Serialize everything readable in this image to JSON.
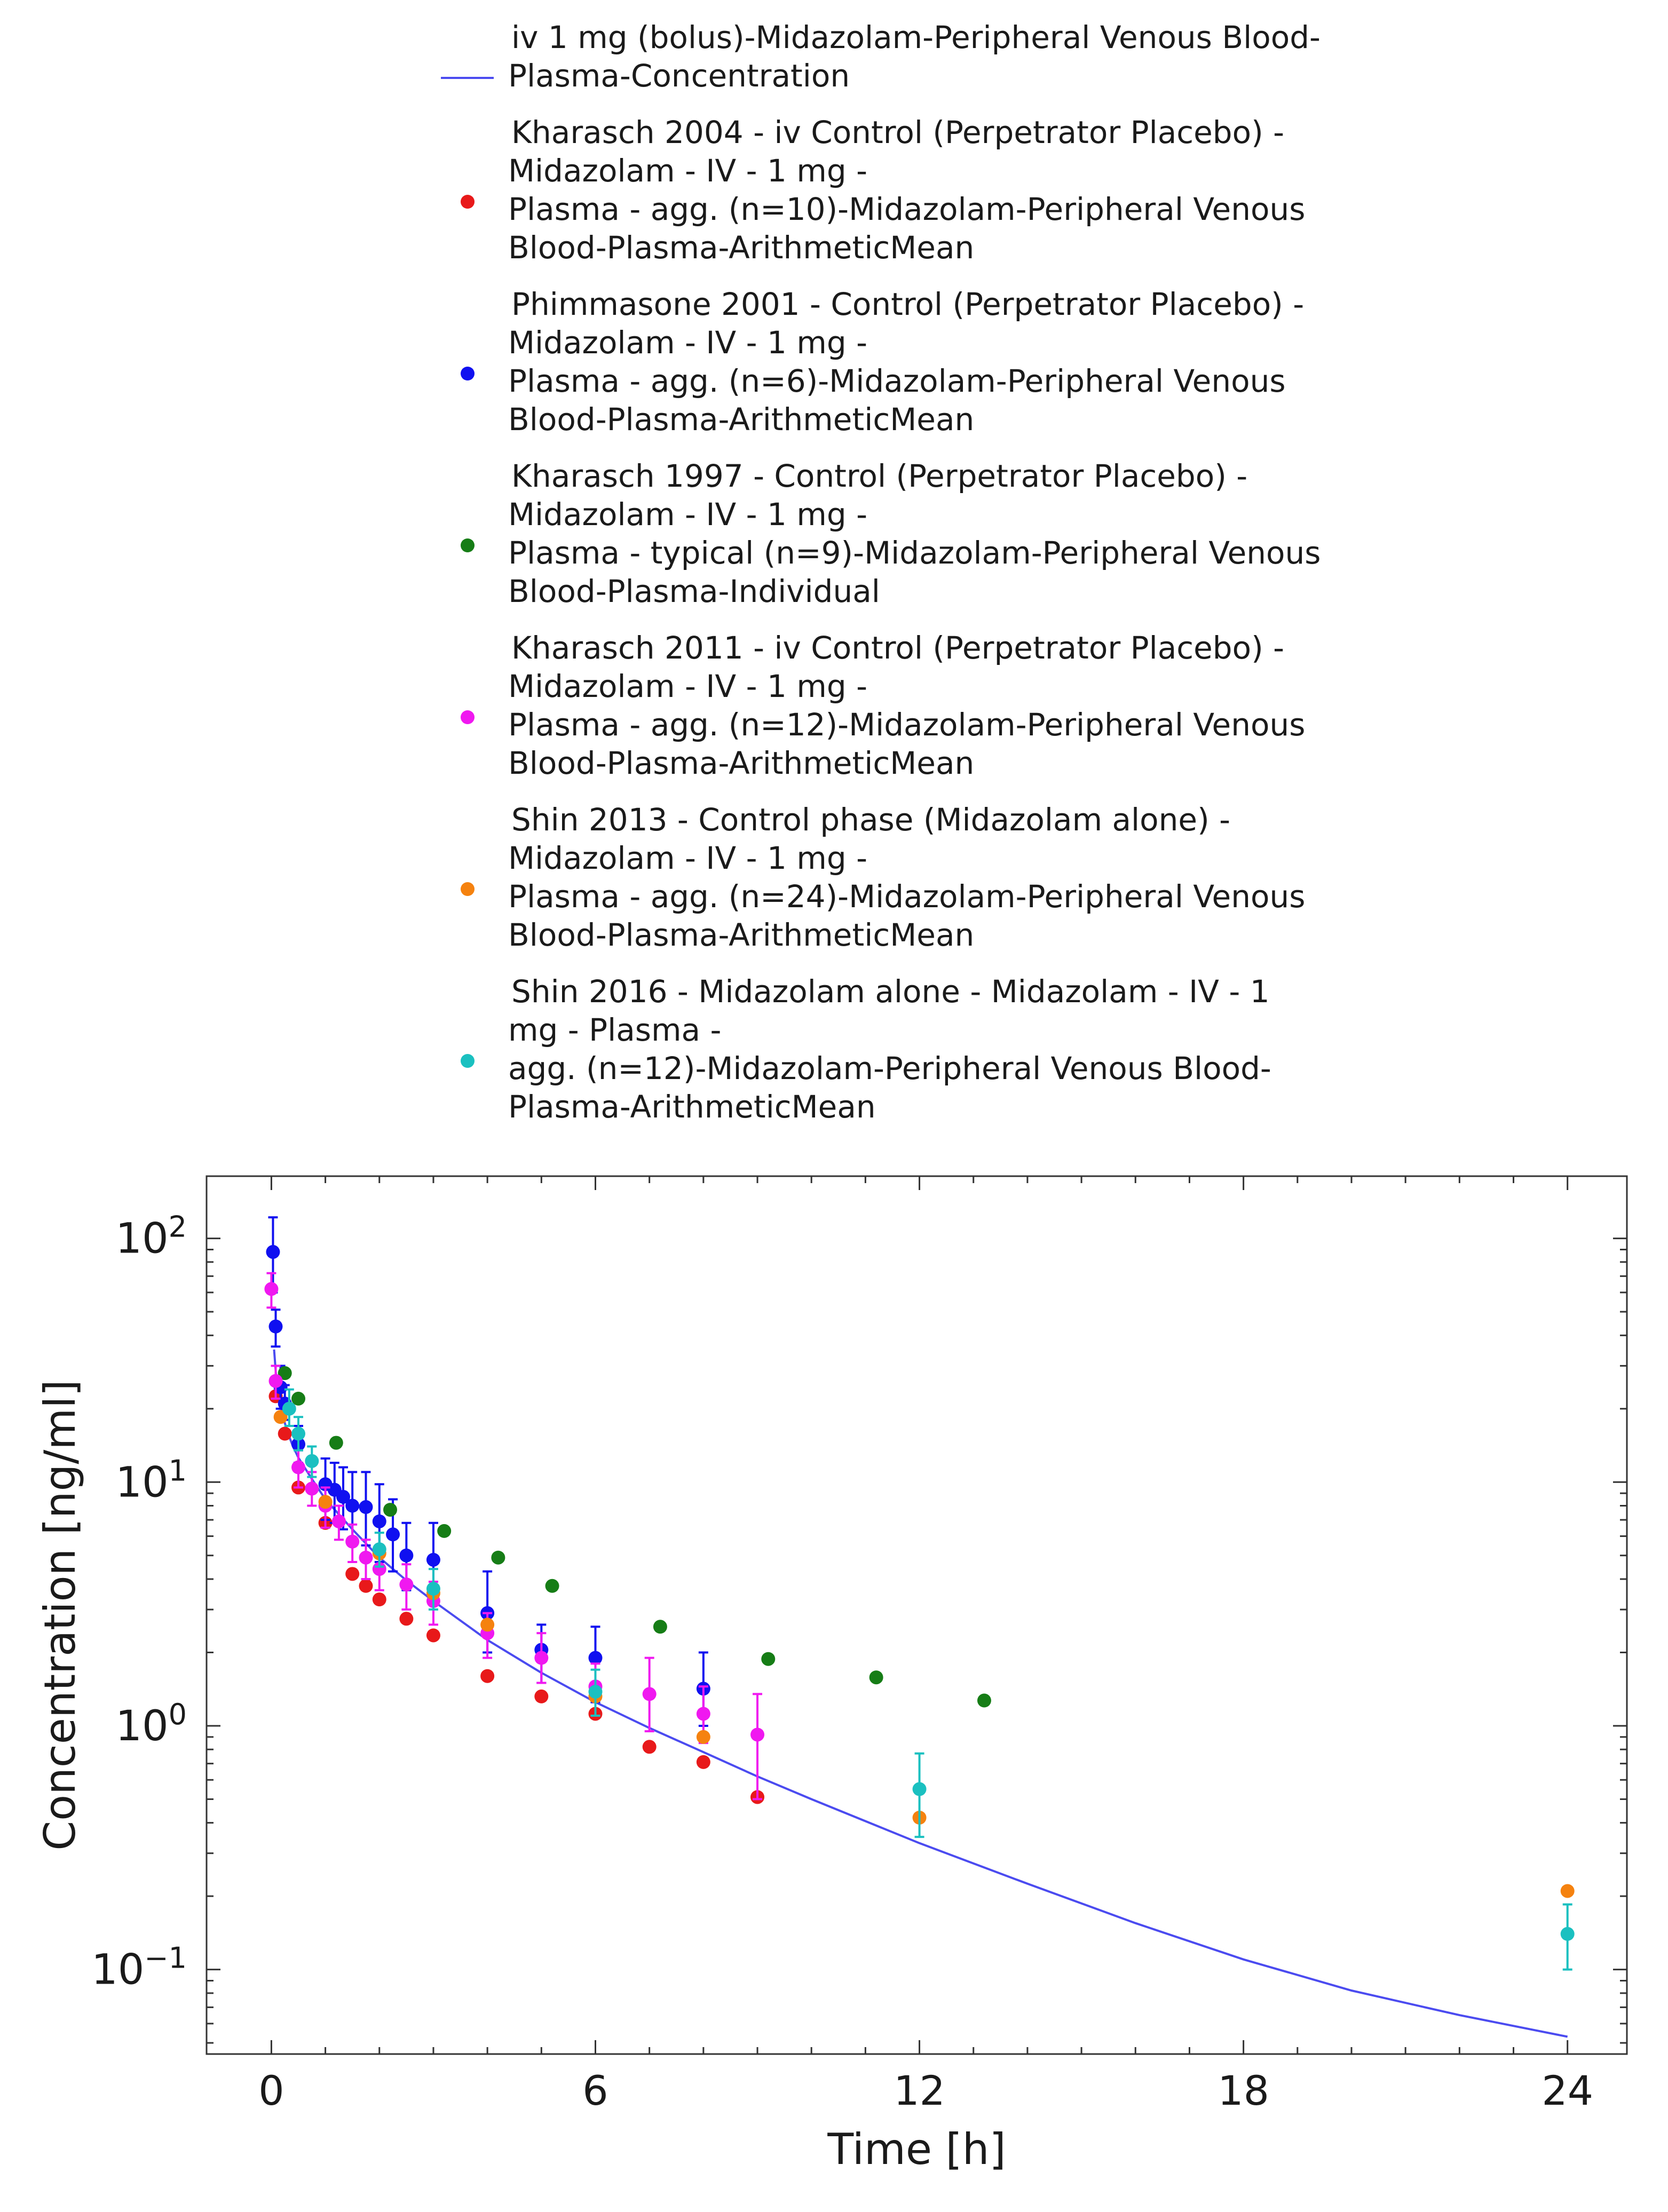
{
  "chart_data": {
    "type": "scatter",
    "xlabel": "Time [h]",
    "ylabel": "Concentration [ng/ml]",
    "xlim": [
      -1.2,
      25.1
    ],
    "y_scale": "log",
    "ylim": [
      0.045,
      180
    ],
    "x_ticks": [
      0,
      6,
      12,
      18,
      24
    ],
    "y_ticks": [
      {
        "value": 100,
        "base": "10",
        "exp": "2"
      },
      {
        "value": 10,
        "base": "10",
        "exp": "1"
      },
      {
        "value": 1,
        "base": "10",
        "exp": "0"
      },
      {
        "value": 0.1,
        "base": "10",
        "exp": "−1"
      }
    ],
    "legend_position": "top",
    "grid": false,
    "series": [
      {
        "name_lines": [
          "iv 1 mg (bolus)-Midazolam-Peripheral Venous Blood-",
          "Plasma-Concentration"
        ],
        "kind": "line",
        "color": "#4b4bf0",
        "x": [
          0.05,
          0.1,
          0.2,
          0.3,
          0.4,
          0.5,
          0.75,
          1,
          1.5,
          2,
          2.5,
          3,
          4,
          5,
          6,
          7,
          8,
          9,
          10,
          12,
          14,
          16,
          18,
          20,
          22,
          24
        ],
        "y": [
          35,
          25,
          19,
          16,
          14,
          12.6,
          10.3,
          8.5,
          6.4,
          4.9,
          3.95,
          3.25,
          2.25,
          1.65,
          1.25,
          0.98,
          0.78,
          0.62,
          0.5,
          0.33,
          0.225,
          0.155,
          0.11,
          0.082,
          0.065,
          0.053
        ]
      },
      {
        "name_lines": [
          "Kharasch 2004 - iv Control (Perpetrator Placebo) -",
          "Midazolam - IV - 1 mg -",
          "Plasma - agg. (n=10)-Midazolam-Peripheral Venous",
          "Blood-Plasma-ArithmeticMean"
        ],
        "kind": "points",
        "color": "#e8191a",
        "points": [
          {
            "x": 0.08,
            "y": 22.5
          },
          {
            "x": 0.25,
            "y": 15.8
          },
          {
            "x": 0.5,
            "y": 9.5
          },
          {
            "x": 1.0,
            "y": 6.8
          },
          {
            "x": 1.5,
            "y": 4.2
          },
          {
            "x": 1.75,
            "y": 3.75
          },
          {
            "x": 2.0,
            "y": 3.3
          },
          {
            "x": 2.5,
            "y": 2.75
          },
          {
            "x": 3.0,
            "y": 2.35
          },
          {
            "x": 4.0,
            "y": 1.6
          },
          {
            "x": 5.0,
            "y": 1.32
          },
          {
            "x": 6.0,
            "y": 1.12
          },
          {
            "x": 7.0,
            "y": 0.82
          },
          {
            "x": 8.0,
            "y": 0.71
          },
          {
            "x": 9.0,
            "y": 0.51
          }
        ]
      },
      {
        "name_lines": [
          "Phimmasone 2001 - Control (Perpetrator Placebo) -",
          "Midazolam - IV - 1 mg -",
          "Plasma - agg. (n=6)-Midazolam-Peripheral Venous",
          "Blood-Plasma-ArithmeticMean"
        ],
        "kind": "points",
        "color": "#1010f0",
        "points": [
          {
            "x": 0.03,
            "y": 88,
            "err": [
              60,
              122
            ]
          },
          {
            "x": 0.08,
            "y": 43.5,
            "err": [
              36,
              51
            ]
          },
          {
            "x": 0.17,
            "y": 24.5,
            "err": [
              20,
              30
            ]
          },
          {
            "x": 0.25,
            "y": 21,
            "err": [
              18,
              25
            ]
          },
          {
            "x": 0.5,
            "y": 14.3,
            "err": [
              12,
              17
            ]
          },
          {
            "x": 1.0,
            "y": 9.8,
            "err": [
              7,
              12.5
            ]
          },
          {
            "x": 1.17,
            "y": 9.3,
            "err": [
              6.8,
              12
            ]
          },
          {
            "x": 1.33,
            "y": 8.7,
            "err": [
              6.4,
              11.5
            ]
          },
          {
            "x": 1.5,
            "y": 8.0,
            "err": [
              5.5,
              11
            ]
          },
          {
            "x": 1.75,
            "y": 7.9,
            "err": [
              5.5,
              11
            ]
          },
          {
            "x": 2.0,
            "y": 6.9,
            "err": [
              4.7,
              9.8
            ]
          },
          {
            "x": 2.25,
            "y": 6.1,
            "err": [
              4.3,
              8.5
            ]
          },
          {
            "x": 2.5,
            "y": 5.0,
            "err": [
              3.6,
              6.8
            ]
          },
          {
            "x": 3.0,
            "y": 4.8,
            "err": [
              3.3,
              6.8
            ]
          },
          {
            "x": 4.0,
            "y": 2.9,
            "err": [
              2.0,
              4.3
            ]
          },
          {
            "x": 5.0,
            "y": 2.05,
            "err": [
              1.5,
              2.6
            ]
          },
          {
            "x": 6.0,
            "y": 1.9,
            "err": [
              1.25,
              2.55
            ]
          },
          {
            "x": 8.0,
            "y": 1.42,
            "err": [
              1.0,
              2.0
            ]
          }
        ]
      },
      {
        "name_lines": [
          "Kharasch 1997 - Control (Perpetrator Placebo) -",
          "Midazolam - IV - 1 mg -",
          "Plasma - typical (n=9)-Midazolam-Peripheral Venous",
          "Blood-Plasma-Individual"
        ],
        "kind": "points",
        "color": "#167d16",
        "points": [
          {
            "x": 0.25,
            "y": 28
          },
          {
            "x": 0.5,
            "y": 22
          },
          {
            "x": 1.2,
            "y": 14.5
          },
          {
            "x": 2.2,
            "y": 7.7
          },
          {
            "x": 3.2,
            "y": 6.3
          },
          {
            "x": 4.2,
            "y": 4.9
          },
          {
            "x": 5.2,
            "y": 3.75
          },
          {
            "x": 7.2,
            "y": 2.55
          },
          {
            "x": 9.2,
            "y": 1.88
          },
          {
            "x": 11.2,
            "y": 1.58
          },
          {
            "x": 13.2,
            "y": 1.27
          }
        ]
      },
      {
        "name_lines": [
          "Kharasch 2011 - iv Control (Perpetrator Placebo) -",
          "Midazolam - IV - 1 mg -",
          "Plasma - agg. (n=12)-Midazolam-Peripheral Venous",
          "Blood-Plasma-ArithmeticMean"
        ],
        "kind": "points",
        "color": "#f018f0",
        "points": [
          {
            "x": 0.0,
            "y": 62,
            "err": [
              52,
              72
            ]
          },
          {
            "x": 0.08,
            "y": 26,
            "err": [
              22,
              30
            ]
          },
          {
            "x": 0.5,
            "y": 11.5,
            "err": [
              9.5,
              13.5
            ]
          },
          {
            "x": 0.75,
            "y": 9.4,
            "err": [
              8,
              11
            ]
          },
          {
            "x": 1.0,
            "y": 8.0,
            "err": [
              6.5,
              9.5
            ]
          },
          {
            "x": 1.25,
            "y": 6.9,
            "err": [
              5.8,
              8
            ]
          },
          {
            "x": 1.5,
            "y": 5.7,
            "err": [
              4.7,
              6.7
            ]
          },
          {
            "x": 1.75,
            "y": 4.9,
            "err": [
              4,
              5.8
            ]
          },
          {
            "x": 2.0,
            "y": 4.4,
            "err": [
              3.6,
              5.2
            ]
          },
          {
            "x": 2.5,
            "y": 3.8,
            "err": [
              3.0,
              4.6
            ]
          },
          {
            "x": 3.0,
            "y": 3.25,
            "err": [
              2.6,
              3.9
            ]
          },
          {
            "x": 4.0,
            "y": 2.4,
            "err": [
              1.9,
              2.9
            ]
          },
          {
            "x": 5.0,
            "y": 1.9,
            "err": [
              1.5,
              2.4
            ]
          },
          {
            "x": 6.0,
            "y": 1.45,
            "err": [
              1.1,
              1.8
            ]
          },
          {
            "x": 7.0,
            "y": 1.35,
            "err": [
              0.95,
              1.9
            ]
          },
          {
            "x": 8.0,
            "y": 1.12,
            "err": [
              0.85,
              1.45
            ]
          },
          {
            "x": 9.0,
            "y": 0.92,
            "err": [
              0.5,
              1.35
            ]
          }
        ]
      },
      {
        "name_lines": [
          "Shin 2013 - Control phase (Midazolam alone) -",
          "Midazolam - IV - 1 mg -",
          "Plasma - agg. (n=24)-Midazolam-Peripheral Venous",
          "Blood-Plasma-ArithmeticMean"
        ],
        "kind": "points",
        "color": "#f5820f",
        "points": [
          {
            "x": 0.17,
            "y": 18.5
          },
          {
            "x": 1.0,
            "y": 8.3
          },
          {
            "x": 2.0,
            "y": 5.1
          },
          {
            "x": 3.0,
            "y": 3.5
          },
          {
            "x": 4.0,
            "y": 2.6
          },
          {
            "x": 6.0,
            "y": 1.32
          },
          {
            "x": 8.0,
            "y": 0.9
          },
          {
            "x": 12.0,
            "y": 0.42
          },
          {
            "x": 24.0,
            "y": 0.21
          }
        ]
      },
      {
        "name_lines": [
          "Shin 2016 - Midazolam alone - Midazolam - IV - 1",
          "mg - Plasma -",
          "agg. (n=12)-Midazolam-Peripheral Venous Blood-",
          "Plasma-ArithmeticMean"
        ],
        "kind": "points",
        "color": "#1ac0c0",
        "points": [
          {
            "x": 0.33,
            "y": 20,
            "err": [
              17,
              24
            ]
          },
          {
            "x": 0.5,
            "y": 15.8,
            "err": [
              13.5,
              18.5
            ]
          },
          {
            "x": 0.75,
            "y": 12.2,
            "err": [
              10.5,
              14
            ]
          },
          {
            "x": 2.0,
            "y": 5.3,
            "err": [
              4.5,
              6.2
            ]
          },
          {
            "x": 3.0,
            "y": 3.65,
            "err": [
              3.0,
              4.4
            ]
          },
          {
            "x": 6.0,
            "y": 1.38,
            "err": [
              1.1,
              1.7
            ]
          },
          {
            "x": 12.0,
            "y": 0.55,
            "err": [
              0.35,
              0.77
            ]
          },
          {
            "x": 24.0,
            "y": 0.14,
            "err": [
              0.1,
              0.185
            ]
          }
        ]
      }
    ]
  }
}
